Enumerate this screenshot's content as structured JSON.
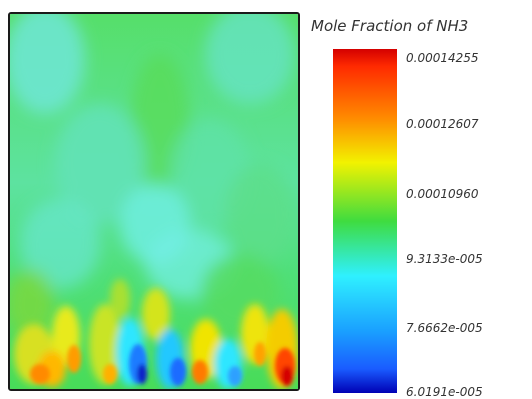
{
  "legend": {
    "title": "Mole Fraction of NH3",
    "labels": [
      "0.00014255",
      "0.00012607",
      "0.00010960",
      "9.3133e-005",
      "7.6662e-005",
      "6.0191e-005"
    ]
  },
  "colors": {
    "dark_red": "#d40000",
    "red": "#ff2a00",
    "orange": "#ff8a00",
    "yellow": "#f2f200",
    "green": "#3fdc3f",
    "cyan": "#2ff0ff",
    "blue": "#1a5cff",
    "dark_blue": "#0000b4",
    "field_green": "#52dc5e",
    "field_cyan": "#5ee8c0"
  }
}
